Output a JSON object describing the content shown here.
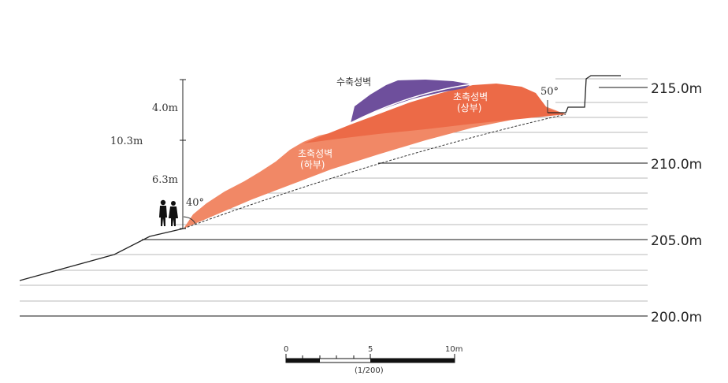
{
  "levels": {
    "l215": "215.0m",
    "l210": "210.0m",
    "l205": "205.0m",
    "l200": "200.0m"
  },
  "dimensions": {
    "upper": "4.0m",
    "total": "10.3m",
    "lower": "6.3m"
  },
  "angles": {
    "left": "40°",
    "right": "50°"
  },
  "labels": {
    "repair_wall": "수축성벽",
    "initial_upper_line1": "초축성벽",
    "initial_upper_line2": "(상부)",
    "initial_lower_line1": "초축성벽",
    "initial_lower_line2": "(하부)"
  },
  "scale": {
    "tick0": "0",
    "tick5": "5",
    "tick10": "10m",
    "ratio": "(1/200)"
  },
  "colors": {
    "repair_wall": "#6e4f9c",
    "initial_upper": "#ec6a47",
    "initial_lower": "#f18866"
  }
}
